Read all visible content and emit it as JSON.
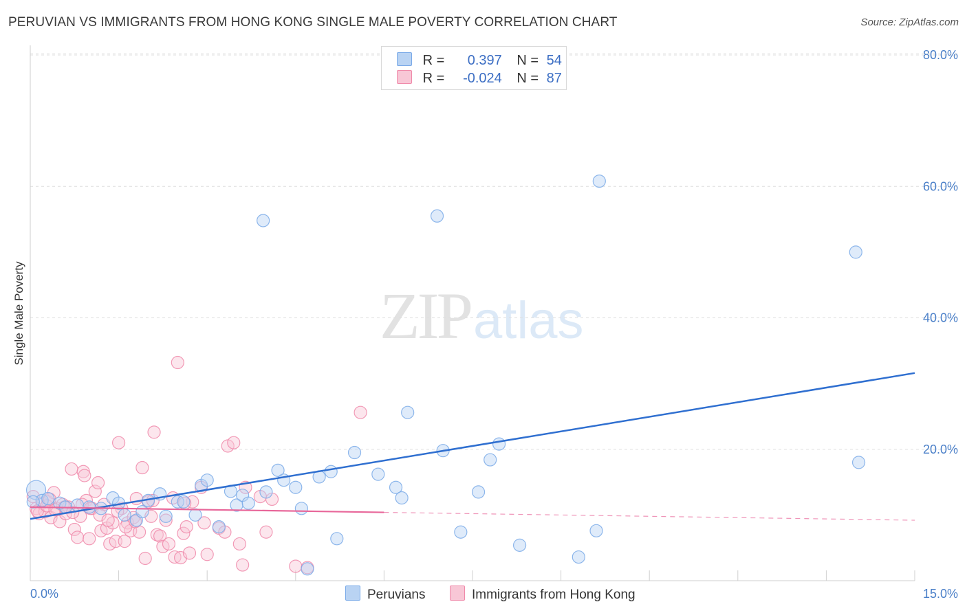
{
  "title": "PERUVIAN VS IMMIGRANTS FROM HONG KONG SINGLE MALE POVERTY CORRELATION CHART",
  "source": "Source: ZipAtlas.com",
  "watermark": {
    "zip": "ZIP",
    "atlas": "atlas"
  },
  "legend": {
    "series1": {
      "r_label": "R =",
      "r_value": "0.397",
      "n_label": "N =",
      "n_value": "54"
    },
    "series2": {
      "r_label": "R =",
      "r_value": "-0.024",
      "n_label": "N =",
      "n_value": "87"
    }
  },
  "colors": {
    "blue": "#7aaae8",
    "blue_fill": "#b9d3f3",
    "blue_line": "#2f6fd0",
    "pink": "#f08aaa",
    "pink_fill": "#f8c7d6",
    "pink_line": "#e8679a"
  },
  "chart_data": {
    "type": "scatter",
    "title": "PERUVIAN VS IMMIGRANTS FROM HONG KONG SINGLE MALE POVERTY CORRELATION CHART",
    "xlabel": "",
    "ylabel": "Single Male Poverty",
    "xlim": [
      0,
      15
    ],
    "ylim": [
      0,
      80
    ],
    "x_tick_labels": [
      "0.0%",
      "15.0%"
    ],
    "y_ticks": [
      20,
      40,
      60,
      80
    ],
    "y_tick_labels": [
      "20.0%",
      "40.0%",
      "60.0%",
      "80.0%"
    ],
    "legend": [
      "Peruvians",
      "Immigrants from Hong Kong"
    ],
    "series": [
      {
        "name": "Peruvians",
        "r": 0.397,
        "n": 54,
        "trend": {
          "x0": 0,
          "y0": 9.4,
          "x1": 15,
          "y1": 31.6,
          "dashed_from": null
        },
        "points": [
          [
            0.1,
            13.8
          ],
          [
            0.2,
            12.2
          ],
          [
            0.3,
            12.5
          ],
          [
            0.5,
            11.8
          ],
          [
            0.6,
            11.2
          ],
          [
            0.8,
            11.5
          ],
          [
            1.0,
            11.2
          ],
          [
            1.2,
            11.0
          ],
          [
            1.4,
            12.6
          ],
          [
            1.5,
            11.8
          ],
          [
            1.6,
            10.0
          ],
          [
            1.8,
            9.2
          ],
          [
            1.9,
            10.5
          ],
          [
            2.0,
            12.2
          ],
          [
            2.2,
            13.2
          ],
          [
            2.3,
            9.8
          ],
          [
            2.5,
            12.0
          ],
          [
            2.6,
            12.0
          ],
          [
            2.8,
            10.0
          ],
          [
            2.9,
            14.5
          ],
          [
            3.0,
            15.3
          ],
          [
            3.2,
            8.2
          ],
          [
            3.4,
            13.6
          ],
          [
            3.5,
            11.5
          ],
          [
            3.6,
            13.0
          ],
          [
            3.7,
            11.8
          ],
          [
            3.95,
            54.8
          ],
          [
            4.0,
            13.5
          ],
          [
            4.2,
            16.8
          ],
          [
            4.3,
            15.3
          ],
          [
            4.5,
            14.2
          ],
          [
            4.6,
            11.0
          ],
          [
            4.7,
            1.8
          ],
          [
            4.9,
            15.8
          ],
          [
            5.1,
            16.6
          ],
          [
            5.2,
            6.4
          ],
          [
            5.5,
            19.5
          ],
          [
            5.9,
            16.2
          ],
          [
            6.2,
            14.2
          ],
          [
            6.3,
            12.6
          ],
          [
            6.4,
            25.6
          ],
          [
            6.9,
            55.5
          ],
          [
            7.0,
            19.8
          ],
          [
            7.3,
            7.4
          ],
          [
            7.6,
            13.5
          ],
          [
            7.8,
            18.4
          ],
          [
            7.95,
            20.8
          ],
          [
            8.3,
            5.4
          ],
          [
            9.3,
            3.6
          ],
          [
            9.6,
            7.6
          ],
          [
            9.65,
            60.8
          ],
          [
            14.0,
            50.0
          ],
          [
            14.05,
            18.0
          ],
          [
            0.05,
            12.0
          ]
        ]
      },
      {
        "name": "Immigrants from Hong Kong",
        "r": -0.024,
        "n": 87,
        "trend": {
          "x0": 0,
          "y0": 11.2,
          "x1": 15,
          "y1": 9.2,
          "dashed_from": 6.0
        },
        "points": [
          [
            0.05,
            12.8
          ],
          [
            0.1,
            11.0
          ],
          [
            0.15,
            10.2
          ],
          [
            0.2,
            11.8
          ],
          [
            0.25,
            10.5
          ],
          [
            0.3,
            12.0
          ],
          [
            0.35,
            9.6
          ],
          [
            0.4,
            13.4
          ],
          [
            0.45,
            11.0
          ],
          [
            0.5,
            9.0
          ],
          [
            0.55,
            11.6
          ],
          [
            0.6,
            10.2
          ],
          [
            0.65,
            11.2
          ],
          [
            0.7,
            17.0
          ],
          [
            0.75,
            7.8
          ],
          [
            0.8,
            6.6
          ],
          [
            0.85,
            9.8
          ],
          [
            0.9,
            16.6
          ],
          [
            0.92,
            16.0
          ],
          [
            0.95,
            12.2
          ],
          [
            1.0,
            6.4
          ],
          [
            1.05,
            11.0
          ],
          [
            1.1,
            13.6
          ],
          [
            1.15,
            14.9
          ],
          [
            1.2,
            7.6
          ],
          [
            1.25,
            11.6
          ],
          [
            1.3,
            8.0
          ],
          [
            1.35,
            5.6
          ],
          [
            1.4,
            8.8
          ],
          [
            1.45,
            6.0
          ],
          [
            1.5,
            21.0
          ],
          [
            1.55,
            11.0
          ],
          [
            1.6,
            6.0
          ],
          [
            1.65,
            8.8
          ],
          [
            1.7,
            7.6
          ],
          [
            1.75,
            9.6
          ],
          [
            1.8,
            12.5
          ],
          [
            1.85,
            7.4
          ],
          [
            1.9,
            17.2
          ],
          [
            1.95,
            3.4
          ],
          [
            2.0,
            12.0
          ],
          [
            2.05,
            9.8
          ],
          [
            2.1,
            22.6
          ],
          [
            2.15,
            7.0
          ],
          [
            2.2,
            6.8
          ],
          [
            2.25,
            5.2
          ],
          [
            2.3,
            9.2
          ],
          [
            2.35,
            5.6
          ],
          [
            2.45,
            3.6
          ],
          [
            2.5,
            33.2
          ],
          [
            2.55,
            3.5
          ],
          [
            2.6,
            7.2
          ],
          [
            2.65,
            8.2
          ],
          [
            2.7,
            4.2
          ],
          [
            2.75,
            12.0
          ],
          [
            2.9,
            14.2
          ],
          [
            2.95,
            8.8
          ],
          [
            3.0,
            4.0
          ],
          [
            3.2,
            8.0
          ],
          [
            3.3,
            7.4
          ],
          [
            3.35,
            20.5
          ],
          [
            3.45,
            21.0
          ],
          [
            3.55,
            5.6
          ],
          [
            3.6,
            2.4
          ],
          [
            3.65,
            14.2
          ],
          [
            3.9,
            12.8
          ],
          [
            4.0,
            7.4
          ],
          [
            4.1,
            12.4
          ],
          [
            4.5,
            2.2
          ],
          [
            4.7,
            2.0
          ],
          [
            5.6,
            25.6
          ],
          [
            0.12,
            10.6
          ],
          [
            0.28,
            11.4
          ],
          [
            0.42,
            10.8
          ],
          [
            0.58,
            11.2
          ],
          [
            0.72,
            10.4
          ],
          [
            0.88,
            11.6
          ],
          [
            1.02,
            11.0
          ],
          [
            1.18,
            10.0
          ],
          [
            1.32,
            9.2
          ],
          [
            1.48,
            10.6
          ],
          [
            1.62,
            8.2
          ],
          [
            1.78,
            9.0
          ],
          [
            2.08,
            12.2
          ],
          [
            2.42,
            12.6
          ],
          [
            2.62,
            11.8
          ],
          [
            0.33,
            12.4
          ]
        ]
      }
    ]
  }
}
